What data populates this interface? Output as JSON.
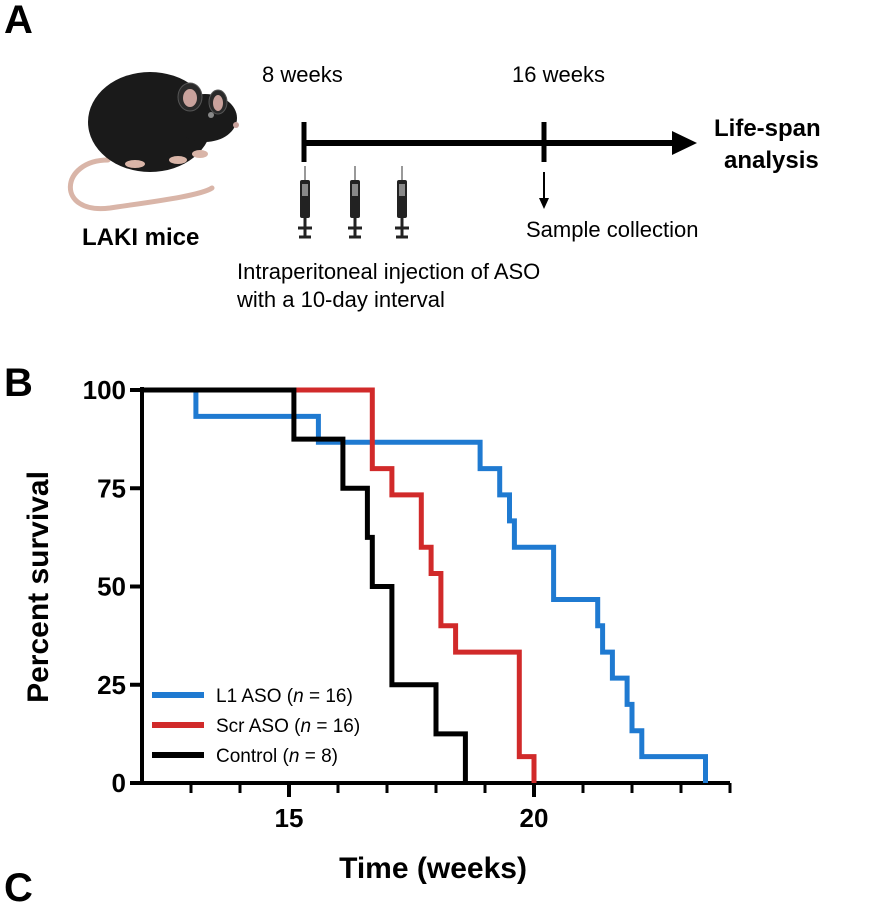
{
  "panels": {
    "a": "A",
    "b": "B",
    "c": "C"
  },
  "schematic": {
    "mouse_label": "LAKI mice",
    "time_start_label": "8 weeks",
    "time_mid_label": "16 weeks",
    "endpoint_label_line1": "Life-span",
    "endpoint_label_line2": "analysis",
    "sample_label": "Sample collection",
    "injection_label_line1": "Intraperitoneal injection of ASO",
    "injection_label_line2": "with a 10-day interval",
    "colors": {
      "mouse_body": "#1a1a1a",
      "mouse_ear_inner": "#c9a29c",
      "tail": "#d9b5a8",
      "timeline": "#000000"
    }
  },
  "chart_data": {
    "type": "line",
    "subtype": "kaplan-meier step",
    "xlabel": "Time (weeks)",
    "ylabel": "Percent survival",
    "xlim": [
      12,
      24
    ],
    "ylim": [
      0,
      100
    ],
    "x_ticks": [
      15,
      20
    ],
    "x_minor_tick_step": 1,
    "y_ticks": [
      0,
      25,
      50,
      75,
      100
    ],
    "grid": false,
    "legend_position": "bottom-left",
    "series": [
      {
        "name": "L1 ASO (n = 16)",
        "name_main": "L1 ASO (",
        "name_n": "n",
        "name_rest": " = 16)",
        "color": "#1f7ad1",
        "x": [
          12,
          13.1,
          15.6,
          18.9,
          19.3,
          19.5,
          19.6,
          20.4,
          21.3,
          21.4,
          21.6,
          21.9,
          22.0,
          22.2,
          22.3,
          23.5
        ],
        "y": [
          100,
          93.3,
          86.7,
          80,
          73.3,
          66.7,
          60,
          46.7,
          40,
          33.3,
          26.7,
          20,
          13.3,
          6.7,
          6.7,
          0
        ]
      },
      {
        "name": "Scr ASO (n = 16)",
        "name_main": "Scr ASO (",
        "name_n": "n",
        "name_rest": " = 16)",
        "color": "#d12a2a",
        "x": [
          12,
          16.7,
          17.1,
          17.7,
          17.9,
          18.1,
          18.4,
          19.7,
          20.0
        ],
        "y": [
          100,
          80,
          73.3,
          60,
          53.3,
          40,
          33.3,
          6.7,
          0
        ]
      },
      {
        "name": "Control (n = 8)",
        "name_main": "Control (",
        "name_n": "n",
        "name_rest": " = 8)",
        "color": "#000000",
        "x": [
          12,
          15.1,
          16.1,
          16.6,
          16.7,
          17.1,
          18.0,
          18.6
        ],
        "y": [
          100,
          87.5,
          75,
          62.5,
          50,
          25,
          12.5,
          0
        ]
      }
    ]
  }
}
